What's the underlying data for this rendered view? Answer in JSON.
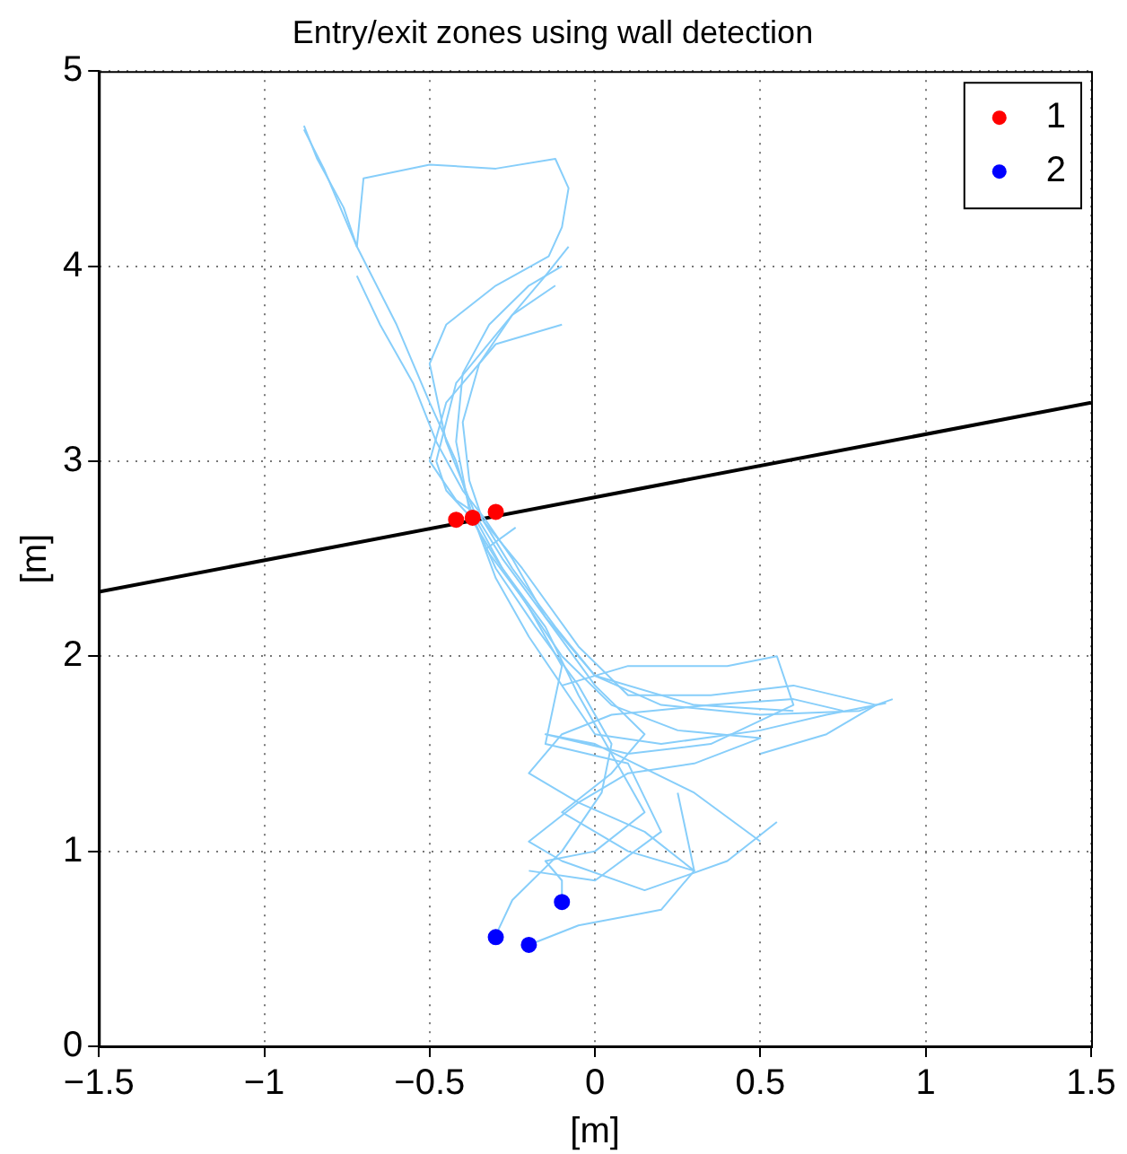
{
  "chart_data": {
    "type": "line",
    "title": "Entry/exit zones using wall detection",
    "xlabel": "[m]",
    "ylabel": "[m]",
    "xlim": [
      -1.5,
      1.5
    ],
    "xticks": [
      {
        "value": -1.5,
        "label": "−1.5"
      },
      {
        "value": -1,
        "label": "−1"
      },
      {
        "value": -0.5,
        "label": "−0.5"
      },
      0,
      0.5,
      1,
      1.5
    ],
    "ylim": [
      0,
      5
    ],
    "yticks": [
      0,
      1,
      2,
      3,
      4,
      5
    ],
    "grid": true,
    "legend": "top right",
    "line_style": "solid",
    "series": [
      {
        "color": "#87cefa",
        "marker": "none",
        "x": [
          -0.88,
          -0.82,
          -0.72,
          -0.6,
          -0.5,
          -0.42,
          -0.37,
          -0.3,
          -0.2,
          -0.08,
          0.0,
          0.2,
          0.5,
          0.7,
          0.88
        ],
        "values": [
          4.7,
          4.5,
          4.1,
          3.7,
          3.3,
          3.0,
          2.72,
          2.4,
          2.1,
          1.8,
          1.6,
          1.55,
          1.62,
          1.7,
          1.76
        ]
      },
      {
        "color": "#87cefa",
        "marker": "none",
        "x": [
          -0.1,
          -0.2,
          -0.32,
          -0.4,
          -0.42,
          -0.38,
          -0.3,
          -0.18,
          -0.05,
          0.05,
          0.02,
          -0.1,
          -0.25,
          -0.3
        ],
        "values": [
          4.0,
          3.9,
          3.7,
          3.45,
          3.1,
          2.75,
          2.45,
          2.15,
          1.85,
          1.55,
          1.3,
          1.0,
          0.75,
          0.57
        ]
      },
      {
        "color": "#87cefa",
        "marker": "none",
        "x": [
          -0.88,
          -0.84,
          -0.76,
          -0.72,
          -0.7,
          -0.5,
          -0.3,
          -0.12,
          -0.08,
          -0.1,
          -0.14,
          -0.3,
          -0.45,
          -0.5,
          -0.45,
          -0.36,
          -0.28,
          -0.15,
          0.0,
          0.3,
          0.6
        ],
        "values": [
          4.72,
          4.55,
          4.3,
          4.1,
          4.45,
          4.52,
          4.5,
          4.55,
          4.4,
          4.2,
          4.05,
          3.9,
          3.7,
          3.5,
          3.1,
          2.72,
          2.5,
          2.2,
          1.9,
          1.75,
          1.72
        ]
      },
      {
        "color": "#87cefa",
        "marker": "none",
        "x": [
          -0.08,
          -0.15,
          -0.25,
          -0.35,
          -0.4,
          -0.38,
          -0.34,
          -0.25,
          -0.12,
          0.0,
          0.2,
          0.5,
          0.8,
          0.9
        ],
        "values": [
          4.1,
          3.95,
          3.75,
          3.5,
          3.2,
          2.9,
          2.7,
          2.45,
          2.15,
          1.9,
          1.75,
          1.7,
          1.72,
          1.78
        ]
      },
      {
        "color": "#87cefa",
        "marker": "none",
        "x": [
          -0.12,
          -0.25,
          -0.42,
          -0.48,
          -0.45,
          -0.38,
          -0.3,
          -0.2,
          -0.1,
          -0.15,
          0.1,
          0.2,
          0.0,
          -0.2
        ],
        "values": [
          3.9,
          3.75,
          3.4,
          3.0,
          2.85,
          2.72,
          2.5,
          2.25,
          1.95,
          1.55,
          1.45,
          1.1,
          0.85,
          0.9
        ]
      },
      {
        "color": "#87cefa",
        "marker": "none",
        "x": [
          -0.72,
          -0.65,
          -0.55,
          -0.48,
          -0.4,
          -0.34,
          -0.25,
          -0.15,
          0.0,
          0.15,
          0.05,
          -0.1,
          0.1,
          0.3,
          0.25
        ],
        "values": [
          3.95,
          3.7,
          3.4,
          3.1,
          2.85,
          2.72,
          2.5,
          2.2,
          1.85,
          1.6,
          1.4,
          1.2,
          1.0,
          0.9,
          1.3
        ]
      },
      {
        "color": "#87cefa",
        "marker": "none",
        "x": [
          -0.1,
          -0.3,
          -0.45,
          -0.5,
          -0.42,
          -0.35,
          -0.22,
          -0.05,
          0.1,
          0.35,
          0.6,
          0.85,
          0.7,
          0.5
        ],
        "values": [
          3.7,
          3.6,
          3.3,
          3.0,
          2.8,
          2.72,
          2.45,
          2.05,
          1.8,
          1.8,
          1.85,
          1.75,
          1.6,
          1.5
        ]
      },
      {
        "color": "#87cefa",
        "marker": "none",
        "x": [
          -0.24,
          -0.33,
          -0.22,
          -0.1,
          0.05,
          0.25,
          0.5,
          0.3,
          0.1,
          -0.05,
          -0.2,
          -0.1,
          0.15,
          0.4,
          0.55
        ],
        "values": [
          2.66,
          2.55,
          2.3,
          2.0,
          1.75,
          1.62,
          1.58,
          1.45,
          1.4,
          1.25,
          1.05,
          0.95,
          0.8,
          0.95,
          1.15
        ]
      },
      {
        "color": "#87cefa",
        "marker": "none",
        "x": [
          -0.36,
          -0.28,
          -0.15,
          -0.05,
          0.05,
          0.15,
          0.0,
          -0.15,
          -0.1,
          -0.1
        ],
        "values": [
          2.7,
          2.45,
          2.15,
          1.8,
          1.5,
          1.2,
          1.0,
          0.95,
          0.85,
          0.74
        ]
      },
      {
        "color": "#87cefa",
        "marker": "none",
        "x": [
          -0.2,
          -0.05,
          0.2,
          0.3,
          0.15,
          -0.05,
          -0.2,
          -0.1,
          0.05,
          0.35,
          0.6,
          0.75
        ],
        "values": [
          0.52,
          0.62,
          0.7,
          0.9,
          1.1,
          1.25,
          1.4,
          1.6,
          1.7,
          1.75,
          1.78,
          1.72
        ]
      },
      {
        "color": "#87cefa",
        "marker": "none",
        "x": [
          -0.1,
          0.1,
          0.4,
          0.55,
          0.6,
          0.35,
          0.1,
          -0.15,
          0.0,
          0.3,
          0.5
        ],
        "values": [
          1.85,
          1.95,
          1.95,
          2.0,
          1.75,
          1.55,
          1.5,
          1.6,
          1.55,
          1.3,
          1.05
        ]
      },
      {
        "name": "1",
        "type": "scatter",
        "color": "#ff0000",
        "marker": "circle",
        "x": [
          -0.42,
          -0.37,
          -0.3
        ],
        "values": [
          2.7,
          2.71,
          2.74
        ]
      },
      {
        "name": "2",
        "type": "scatter",
        "color": "#0000ff",
        "marker": "circle",
        "x": [
          -0.3,
          -0.2,
          -0.1
        ],
        "values": [
          0.56,
          0.52,
          0.74
        ]
      },
      {
        "color": "#000000",
        "marker": "none",
        "x": [
          -1.5,
          1.5
        ],
        "values": [
          2.33,
          3.3
        ]
      }
    ]
  }
}
